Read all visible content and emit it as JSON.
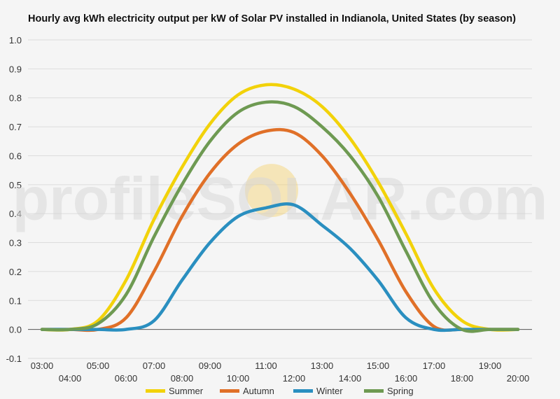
{
  "chart_data": {
    "type": "line",
    "title": "Hourly avg kWh electricity output per kW of Solar PV installed in Indianola, United States (by season)",
    "xlabel": "",
    "ylabel": "",
    "watermark": "profileSOLAR.com",
    "x_ticks": [
      "03:00",
      "04:00",
      "05:00",
      "06:00",
      "07:00",
      "08:00",
      "09:00",
      "10:00",
      "11:00",
      "12:00",
      "13:00",
      "14:00",
      "15:00",
      "16:00",
      "17:00",
      "18:00",
      "19:00",
      "20:00"
    ],
    "x_hours": [
      3,
      4,
      5,
      6,
      7,
      8,
      9,
      10,
      11,
      12,
      13,
      14,
      15,
      16,
      17,
      18,
      19,
      20
    ],
    "y_ticks": [
      "1.0",
      "0.9",
      "0.8",
      "0.7",
      "0.6",
      "0.5",
      "0.4",
      "0.3",
      "0.2",
      "0.1",
      "0.0",
      "-0.1"
    ],
    "ylim": [
      -0.1,
      1.0
    ],
    "xlim": [
      2.5,
      20.5
    ],
    "grid": true,
    "legend_position": "bottom",
    "series": [
      {
        "name": "Summer",
        "color": "#f2d20a",
        "x": [
          3,
          4,
          5,
          6,
          7,
          8,
          9,
          10,
          11,
          12,
          13,
          14,
          15,
          16,
          17,
          18,
          19,
          20
        ],
        "values": [
          0.0,
          0.0,
          0.03,
          0.17,
          0.38,
          0.56,
          0.71,
          0.81,
          0.845,
          0.83,
          0.77,
          0.66,
          0.51,
          0.33,
          0.14,
          0.03,
          0.0,
          0.0
        ]
      },
      {
        "name": "Autumn",
        "color": "#e07028",
        "x": [
          3,
          4,
          5,
          6,
          7,
          8,
          9,
          10,
          11,
          12,
          13,
          14,
          15,
          16,
          17,
          18,
          19,
          20
        ],
        "values": [
          0.0,
          0.0,
          0.0,
          0.04,
          0.2,
          0.39,
          0.54,
          0.64,
          0.685,
          0.68,
          0.6,
          0.47,
          0.31,
          0.13,
          0.01,
          0.0,
          0.0,
          0.0
        ]
      },
      {
        "name": "Winter",
        "color": "#2a8fc0",
        "x": [
          3,
          4,
          5,
          6,
          7,
          8,
          9,
          10,
          11,
          12,
          13,
          14,
          15,
          16,
          17,
          18,
          19,
          20
        ],
        "values": [
          0.0,
          0.0,
          0.0,
          0.0,
          0.03,
          0.17,
          0.3,
          0.39,
          0.42,
          0.43,
          0.36,
          0.28,
          0.17,
          0.04,
          0.0,
          0.0,
          0.0,
          0.0
        ]
      },
      {
        "name": "Spring",
        "color": "#6e9a52",
        "x": [
          3,
          4,
          5,
          6,
          7,
          8,
          9,
          10,
          11,
          12,
          13,
          14,
          15,
          16,
          17,
          18,
          19,
          20
        ],
        "values": [
          0.0,
          0.0,
          0.02,
          0.12,
          0.32,
          0.5,
          0.65,
          0.75,
          0.785,
          0.77,
          0.7,
          0.6,
          0.46,
          0.27,
          0.09,
          0.0,
          0.0,
          0.0
        ]
      }
    ]
  }
}
